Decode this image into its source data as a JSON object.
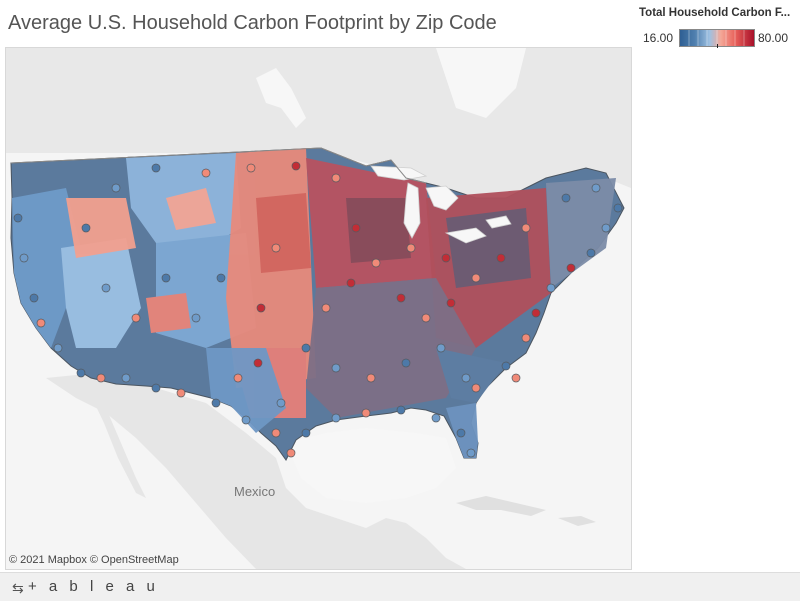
{
  "title": "Average U.S. Household Carbon Footprint by Zip Code",
  "legend": {
    "title": "Total Household Carbon F...",
    "min": "16.00",
    "max": "80.00",
    "ramp_colors": [
      "#2f5f93",
      "#4f7fae",
      "#7aa3cc",
      "#b7d2ea",
      "#f4a898",
      "#e8705f",
      "#d13c3f",
      "#a8102a"
    ]
  },
  "map": {
    "label_mexico": "Mexico",
    "attribution": "© 2021 Mapbox  © OpenStreetMap",
    "colors": {
      "land": "#e6e6e6",
      "water": "#f7f7f7",
      "border": "#555a60",
      "low": "#4d79a8",
      "mid_low": "#8cb3d9",
      "mid_high": "#f08a78",
      "high": "#c22d36"
    }
  },
  "footer": {
    "share_icon": "share-icon",
    "brand": "+ a b l e a u",
    "brand_plus": "+",
    "brand_text": "tableau"
  }
}
